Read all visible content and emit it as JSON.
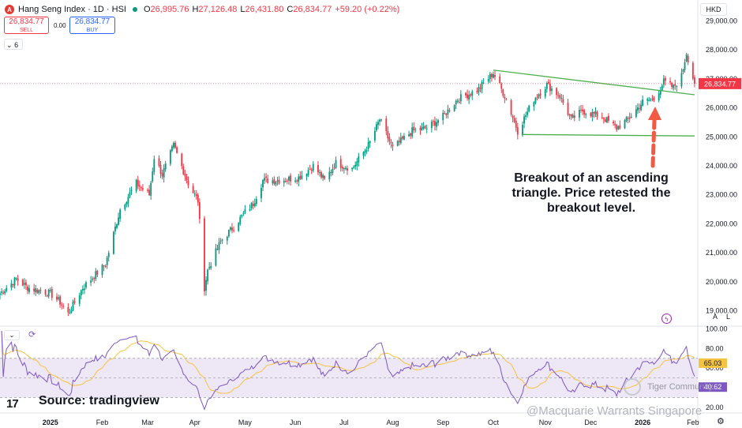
{
  "header": {
    "logo": "A",
    "title": "Hang Seng Index · 1D · HSI",
    "o_label": "O",
    "o_value": "26,995.76",
    "h_label": "H",
    "h_value": "27,126.48",
    "l_label": "L",
    "l_value": "26,431.80",
    "c_label": "C",
    "c_value": "26,834.77",
    "change": "+59.20 (+0.22%)"
  },
  "trade": {
    "sell_price": "26,834.77",
    "sell_label": "SELL",
    "spread": "0.00",
    "buy_price": "26,834.77",
    "buy_label": "BUY"
  },
  "indicators_toggle": "6",
  "currency": "HKD",
  "scale_buttons": {
    "auto": "A",
    "log": "L"
  },
  "annotation": "Breakout of an ascending triangle. Price retested the breakout level.",
  "source": "Source: tradingview",
  "tv_logo": "17",
  "watermark_1": "Tiger Community",
  "watermark_2": "@Macquarie Warrants Singapore",
  "colors": {
    "up": "#089981",
    "down": "#f23645",
    "trendline": "#4caf50",
    "arrow": "#f25a44",
    "rsi": "#7e57c2",
    "rsi_ma": "#f5c342",
    "last_price": "#f23645",
    "rsi_band": "#ede7f6"
  },
  "chart_data": [
    {
      "type": "candlestick",
      "title": "Hang Seng Index · 1D · HSI",
      "y_ticks": [
        19000,
        20000,
        21000,
        22000,
        23000,
        24000,
        25000,
        26000,
        27000,
        28000,
        29000
      ],
      "y_tick_labels": [
        "19,000.00",
        "20,000.00",
        "21,000.00",
        "22,000.00",
        "23,000.00",
        "24,000.00",
        "25,000.00",
        "26,000.00",
        "27,000.00",
        "28,000.00",
        "29,000.00"
      ],
      "ylim": [
        18500,
        29500
      ],
      "last_price": 26834.77,
      "last_price_label": "26,834.77",
      "x_labels": [
        {
          "label": "2025",
          "date": "2025-01-02"
        },
        {
          "label": "Feb",
          "date": "2025-02-03"
        },
        {
          "label": "Mar",
          "date": "2025-03-03"
        },
        {
          "label": "Apr",
          "date": "2025-04-01"
        },
        {
          "label": "May",
          "date": "2025-05-02"
        },
        {
          "label": "Jun",
          "date": "2025-06-02"
        },
        {
          "label": "Jul",
          "date": "2025-07-02"
        },
        {
          "label": "Aug",
          "date": "2025-08-01"
        },
        {
          "label": "Sep",
          "date": "2025-09-01"
        },
        {
          "label": "Oct",
          "date": "2025-10-02"
        },
        {
          "label": "Nov",
          "date": "2025-11-03"
        },
        {
          "label": "Dec",
          "date": "2025-12-01"
        },
        {
          "label": "2026",
          "date": "2026-01-02"
        },
        {
          "label": "Feb",
          "date": "2026-02-02"
        }
      ],
      "close_path": [
        [
          "2024-12-02",
          19600
        ],
        [
          "2024-12-12",
          20100
        ],
        [
          "2024-12-19",
          19800
        ],
        [
          "2025-01-02",
          19600
        ],
        [
          "2025-01-08",
          19300
        ],
        [
          "2025-01-13",
          18900
        ],
        [
          "2025-01-22",
          19800
        ],
        [
          "2025-02-05",
          20600
        ],
        [
          "2025-02-14",
          22500
        ],
        [
          "2025-02-24",
          23400
        ],
        [
          "2025-03-04",
          23000
        ],
        [
          "2025-03-07",
          24300
        ],
        [
          "2025-03-12",
          23700
        ],
        [
          "2025-03-19",
          24700
        ],
        [
          "2025-03-28",
          23400
        ],
        [
          "2025-04-03",
          22800
        ],
        [
          "2025-04-07",
          19800
        ],
        [
          "2025-04-09",
          20400
        ],
        [
          "2025-04-17",
          21400
        ],
        [
          "2025-04-25",
          21900
        ],
        [
          "2025-05-02",
          22400
        ],
        [
          "2025-05-07",
          22700
        ],
        [
          "2025-05-13",
          23500
        ],
        [
          "2025-05-23",
          23500
        ],
        [
          "2025-06-04",
          23600
        ],
        [
          "2025-06-13",
          24000
        ],
        [
          "2025-06-20",
          23500
        ],
        [
          "2025-06-27",
          24100
        ],
        [
          "2025-07-07",
          23900
        ],
        [
          "2025-07-18",
          24800
        ],
        [
          "2025-07-24",
          25600
        ],
        [
          "2025-08-01",
          24600
        ],
        [
          "2025-08-13",
          25200
        ],
        [
          "2025-08-22",
          25300
        ],
        [
          "2025-09-01",
          25700
        ],
        [
          "2025-09-10",
          26300
        ],
        [
          "2025-09-22",
          26600
        ],
        [
          "2025-10-02",
          27200
        ],
        [
          "2025-10-10",
          26300
        ],
        [
          "2025-10-17",
          25200
        ],
        [
          "2025-10-27",
          26300
        ],
        [
          "2025-11-04",
          26800
        ],
        [
          "2025-11-12",
          26400
        ],
        [
          "2025-11-19",
          25600
        ],
        [
          "2025-11-26",
          25900
        ],
        [
          "2025-12-08",
          25700
        ],
        [
          "2025-12-17",
          25300
        ],
        [
          "2025-12-24",
          25600
        ],
        [
          "2026-01-02",
          26200
        ],
        [
          "2026-01-09",
          26300
        ],
        [
          "2026-01-15",
          26900
        ],
        [
          "2026-01-21",
          26700
        ],
        [
          "2026-01-26",
          27100
        ],
        [
          "2026-01-29",
          27900
        ],
        [
          "2026-02-03",
          26834.77
        ]
      ],
      "trendlines": [
        {
          "from": [
            "2025-10-02",
            27300
          ],
          "to": [
            "2026-02-03",
            26450
          ]
        },
        {
          "from": [
            "2025-10-20",
            25080
          ],
          "to": [
            "2026-02-03",
            25030
          ]
        }
      ]
    },
    {
      "type": "line",
      "title": "RSI",
      "y_ticks": [
        20,
        40,
        60,
        80,
        100
      ],
      "y_tick_labels": [
        "20.00",
        "40.00",
        "60.00",
        "80.00",
        "100.00"
      ],
      "ylim": [
        15,
        102
      ],
      "bands": [
        30,
        50,
        70
      ],
      "overbought": 70,
      "oversold": 30,
      "rsi_value": 40.62,
      "rsi_value_label": "40.62",
      "ma_value": 65.03,
      "ma_value_label": "65.03"
    }
  ]
}
